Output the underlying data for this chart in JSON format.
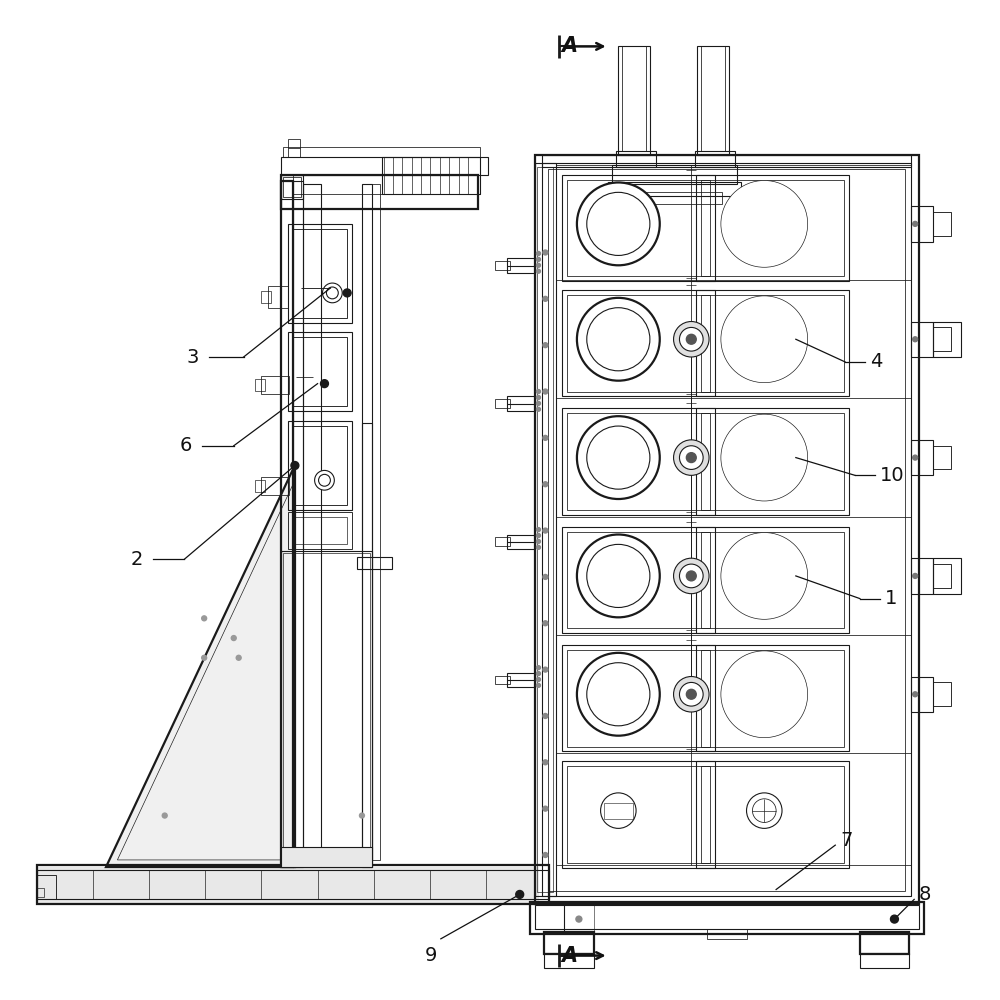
{
  "bg_color": "#ffffff",
  "lc": "#1a1a1a",
  "lw": 0.8,
  "tlw": 1.6,
  "figsize": [
    10,
    10
  ],
  "dpi": 100
}
